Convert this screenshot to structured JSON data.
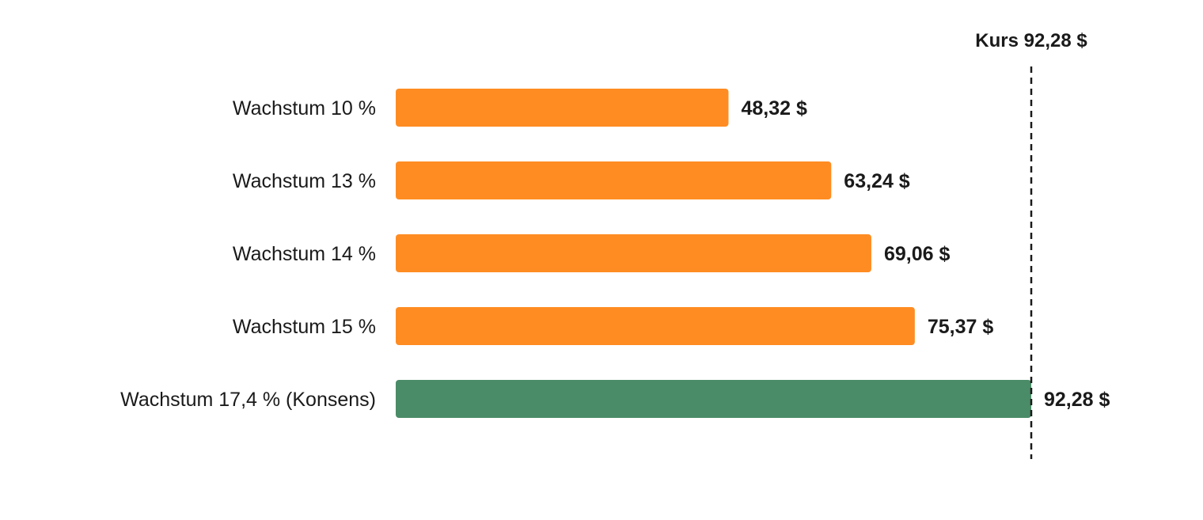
{
  "chart_data": {
    "type": "bar",
    "orientation": "horizontal",
    "categories": [
      "Wachstum 10 %",
      "Wachstum 13 %",
      "Wachstum 14 %",
      "Wachstum 15 %",
      "Wachstum 17,4 % (Konsens)"
    ],
    "values": [
      48.32,
      63.24,
      69.06,
      75.37,
      92.28
    ],
    "value_labels": [
      "48,32 $",
      "63,24 $",
      "69,06 $",
      "75,37 $",
      "92,28 $"
    ],
    "bar_colors": [
      "#ff8c22",
      "#ff8c22",
      "#ff8c22",
      "#ff8c22",
      "#4a8c67"
    ],
    "xlim": [
      0,
      92.28
    ],
    "reference_line": {
      "value": 92.28,
      "label": "Kurs 92,28 $",
      "style": "dashed",
      "color": "#1a1a1a"
    },
    "grid": false,
    "title": "",
    "xlabel": "",
    "ylabel": ""
  }
}
